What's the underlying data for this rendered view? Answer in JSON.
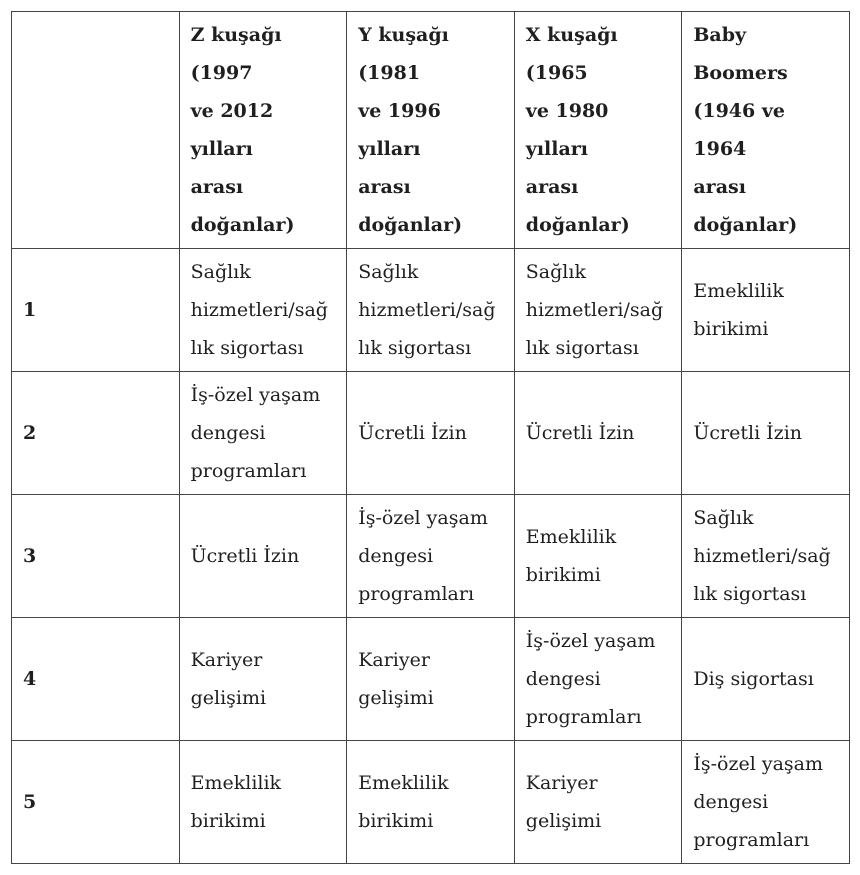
{
  "colors": {
    "border_dark": "#454545",
    "border_light": "#8f8f8f",
    "text": "#1f1f1f",
    "background": "#ffffff"
  },
  "table": {
    "header": [
      "",
      "Z kuşağı (1997\nve 2012 yılları\narası doğanlar)",
      "Y kuşağı (1981\nve 1996 yılları\narası doğanlar)",
      "X kuşağı (1965\nve 1980 yılları\narası doğanlar)",
      "Baby Boomers\n(1946 ve 1964\narası doğanlar)"
    ],
    "rows": [
      {
        "label": "1",
        "cells": [
          "Sağlık\nhizmetleri/sağ\nlık sigortası",
          "Sağlık\nhizmetleri/sağ\nlık sigortası",
          "Sağlık\nhizmetleri/sağ\nlık sigortası",
          "Emeklilik\nbirikimi"
        ]
      },
      {
        "label": "2",
        "cells": [
          "İş-özel yaşam\ndengesi\nprogramları",
          "Ücretli İzin",
          "Ücretli İzin",
          "Ücretli İzin"
        ]
      },
      {
        "label": "3",
        "cells": [
          "Ücretli İzin",
          "İş-özel yaşam\ndengesi\nprogramları",
          "Emeklilik\nbirikimi",
          "Sağlık\nhizmetleri/sağ\nlık sigortası"
        ]
      },
      {
        "label": "4",
        "cells": [
          "Kariyer\ngelişimi",
          "Kariyer\ngelişimi",
          "İş-özel yaşam\ndengesi\nprogramları",
          "Diş sigortası"
        ]
      },
      {
        "label": "5",
        "cells": [
          "Emeklilik\nbirikimi",
          "Emeklilik\nbirikimi",
          "Kariyer\ngelişimi",
          "İş-özel yaşam\ndengesi\nprogramları"
        ]
      }
    ]
  }
}
